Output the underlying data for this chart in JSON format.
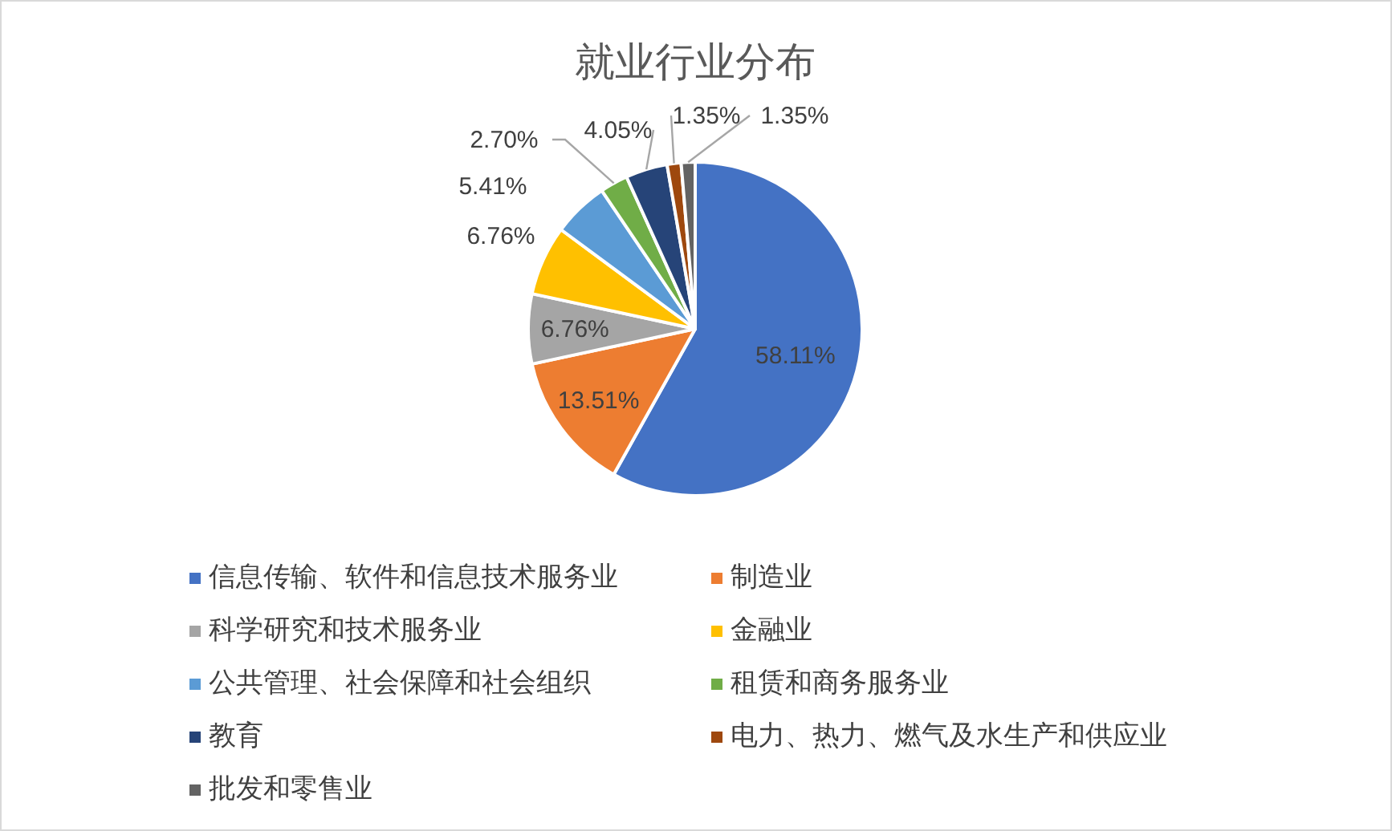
{
  "chart_data": {
    "type": "pie",
    "title": "就业行业分布",
    "categories": [
      "信息传输、软件和信息技术服务业",
      "制造业",
      "科学研究和技术服务业",
      "金融业",
      "公共管理、社会保障和社会组织",
      "租赁和商务服务业",
      "教育",
      "电力、热力、燃气及水生产和供应业",
      "批发和零售业"
    ],
    "values": [
      58.11,
      13.51,
      6.76,
      6.76,
      5.41,
      2.7,
      4.05,
      1.35,
      1.35
    ],
    "colors": [
      "#4472c4",
      "#ed7d31",
      "#a5a5a5",
      "#ffc000",
      "#5b9bd5",
      "#70ad47",
      "#264478",
      "#9e480e",
      "#636363"
    ],
    "value_labels": [
      "58.11%",
      "13.51%",
      "6.76%",
      "6.76%",
      "5.41%",
      "2.70%",
      "4.05%",
      "1.35%",
      "1.35%"
    ],
    "legend": "bottom"
  }
}
